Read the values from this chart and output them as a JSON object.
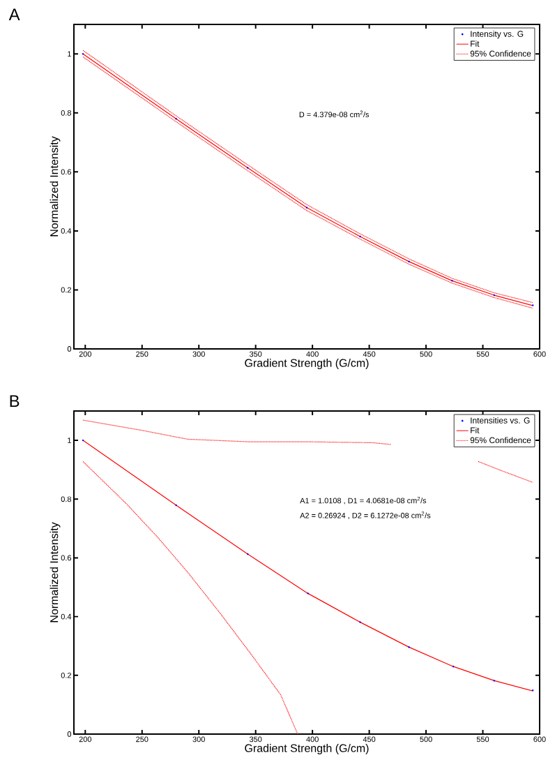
{
  "chart_data": [
    {
      "type": "scatter",
      "title": "A",
      "xlabel": "Gradient Strength (G/cm)",
      "ylabel": "Normalized Intensity",
      "annotations": [
        "D  = 4.379e-08  cm$^{2}$/s"
      ],
      "xlim": [
        190,
        600
      ],
      "ylim": [
        0,
        1.1
      ],
      "xticks": [
        200,
        250,
        300,
        350,
        400,
        450,
        500,
        550,
        600
      ],
      "yticks": [
        0,
        0.2,
        0.4,
        0.6,
        0.8,
        1
      ],
      "legend": "top right",
      "series": [
        {
          "name": "Intensity vs. G",
          "marker": "circle",
          "color": "#0000ff",
          "x": [
            198,
            280,
            343,
            395,
            442,
            485,
            523,
            560,
            594
          ],
          "values": [
            1.0,
            0.78,
            0.614,
            0.479,
            0.381,
            0.296,
            0.231,
            0.182,
            0.148
          ]
        },
        {
          "name": "Fit",
          "type": "line",
          "line_style": "solid",
          "color": "#ff0000",
          "x": [
            198,
            280,
            343,
            395,
            442,
            485,
            523,
            560,
            594
          ],
          "values": [
            1.0,
            0.78,
            0.614,
            0.479,
            0.381,
            0.296,
            0.231,
            0.182,
            0.147
          ]
        },
        {
          "name": "95% Confidence",
          "type": "line",
          "line_style": "dotted",
          "color": "#ff0000",
          "x": [
            198,
            280,
            343,
            395,
            442,
            485,
            523,
            560,
            594
          ],
          "values": [
            1.012,
            0.79,
            0.624,
            0.489,
            0.39,
            0.305,
            0.239,
            0.19,
            0.157
          ]
        },
        {
          "type": "line",
          "line_style": "dotted",
          "color": "#ff0000",
          "x": [
            198,
            280,
            343,
            395,
            442,
            485,
            523,
            560,
            594
          ],
          "values": [
            0.99,
            0.77,
            0.604,
            0.469,
            0.372,
            0.287,
            0.223,
            0.174,
            0.138
          ]
        }
      ]
    },
    {
      "type": "scatter",
      "title": "B",
      "xlabel": "Gradient Strength (G/cm)",
      "ylabel": "Normalized Intensity",
      "annotations": [
        "A1 = 1.0108 , D1 = 4.0681e-08  cm$^{2}$/s",
        "A2 = 0.26924 , D2 = 6.1272e-08  cm$^{2}$/s"
      ],
      "xlim": [
        190,
        600
      ],
      "ylim": [
        0,
        1.1
      ],
      "xticks": [
        200,
        250,
        300,
        350,
        400,
        450,
        500,
        550,
        600
      ],
      "yticks": [
        0,
        0.2,
        0.4,
        0.6,
        0.8,
        1
      ],
      "legend": "top right",
      "series": [
        {
          "name": "Intensities vs. G",
          "marker": "circle",
          "color": "#0000ff",
          "x": [
            198,
            280,
            343,
            396,
            442,
            485,
            524,
            560,
            594
          ],
          "values": [
            1.0,
            0.779,
            0.613,
            0.479,
            0.381,
            0.296,
            0.23,
            0.182,
            0.149
          ]
        },
        {
          "name": "Fit",
          "type": "line",
          "line_style": "solid",
          "color": "#ff0000",
          "x": [
            198,
            280,
            343,
            396,
            442,
            485,
            524,
            560,
            594
          ],
          "values": [
            1.0,
            0.779,
            0.613,
            0.479,
            0.381,
            0.296,
            0.23,
            0.182,
            0.147
          ]
        },
        {
          "name": "95% Confidence",
          "type": "line",
          "line_style": "dotted",
          "color": "#ff0000",
          "x": [
            198,
            250,
            290,
            345,
            399,
            453,
            469,
            510,
            546,
            567,
            594
          ],
          "values": [
            1.069,
            1.034,
            1.004,
            0.995,
            0.995,
            0.992,
            0.986,
            null,
            0.928,
            0.896,
            0.857
          ]
        },
        {
          "type": "line",
          "line_style": "dotted",
          "color": "#ff0000",
          "x": [
            198,
            236,
            264,
            291,
            318,
            345,
            372,
            387
          ],
          "values": [
            0.928,
            0.785,
            0.669,
            0.547,
            0.415,
            0.277,
            0.134,
            0.0
          ]
        }
      ]
    }
  ]
}
